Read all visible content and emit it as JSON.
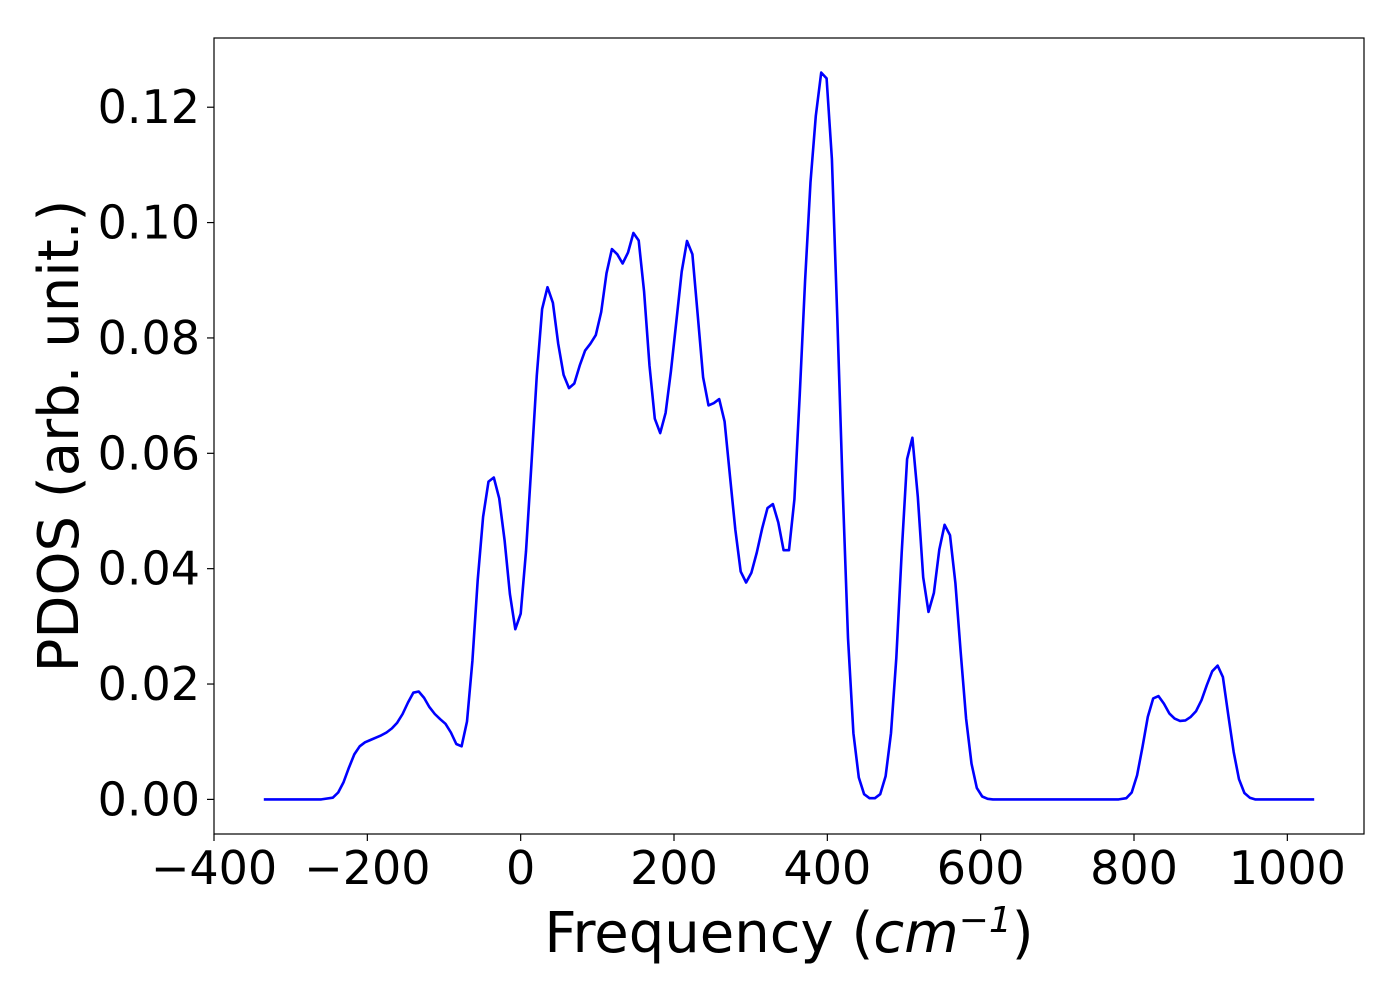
{
  "chart_data": {
    "type": "line",
    "title": "",
    "xlabel_parts": [
      "Frequency (",
      "cm",
      "−1",
      ")"
    ],
    "ylabel": "PDOS (arb. unit.)",
    "xlim": [
      -400,
      1100
    ],
    "ylim": [
      -0.006,
      0.132
    ],
    "xticks": [
      -400,
      -200,
      0,
      200,
      400,
      600,
      800,
      1000
    ],
    "xtick_labels": [
      "−400",
      "−200",
      "0",
      "200",
      "400",
      "600",
      "800",
      "1000"
    ],
    "yticks": [
      0.0,
      0.02,
      0.04,
      0.06,
      0.08,
      0.1,
      0.12
    ],
    "ytick_labels": [
      "0.00",
      "0.02",
      "0.04",
      "0.06",
      "0.08",
      "0.10",
      "0.12"
    ],
    "grid": false,
    "legend": "none",
    "series": [
      {
        "color": "#0000ff",
        "x": [
          -335,
          -300,
          -260,
          -245,
          -238,
          -231,
          -224,
          -217,
          -210,
          -203,
          -196,
          -189,
          -182,
          -175,
          -168,
          -161,
          -154,
          -147,
          -140,
          -133,
          -126,
          -119,
          -112,
          -105,
          -98,
          -91,
          -84,
          -77,
          -70,
          -63,
          -56,
          -49,
          -42,
          -35,
          -28,
          -21,
          -14,
          -7,
          0,
          7,
          14,
          21,
          28,
          35,
          42,
          49,
          56,
          63,
          70,
          77,
          84,
          91,
          98,
          105,
          112,
          119,
          126,
          133,
          140,
          147,
          154,
          161,
          168,
          175,
          182,
          189,
          196,
          203,
          210,
          217,
          224,
          231,
          238,
          245,
          252,
          259,
          266,
          273,
          280,
          287,
          294,
          301,
          308,
          315,
          322,
          329,
          336,
          343,
          350,
          357,
          364,
          371,
          378,
          385,
          392,
          399,
          406,
          413,
          420,
          427,
          434,
          441,
          448,
          455,
          462,
          469,
          476,
          483,
          490,
          497,
          504,
          511,
          518,
          525,
          532,
          539,
          546,
          553,
          560,
          567,
          574,
          581,
          588,
          595,
          602,
          609,
          616,
          630,
          700,
          780,
          790,
          797,
          804,
          811,
          818,
          825,
          832,
          839,
          846,
          853,
          860,
          867,
          874,
          881,
          888,
          895,
          902,
          909,
          916,
          923,
          930,
          937,
          944,
          951,
          958,
          970,
          1000,
          1035
        ],
        "y": [
          0.0,
          0.0,
          0.0,
          0.0003,
          0.0012,
          0.003,
          0.0055,
          0.0078,
          0.0092,
          0.0099,
          0.0103,
          0.0107,
          0.0111,
          0.0116,
          0.0123,
          0.0133,
          0.0148,
          0.0168,
          0.0185,
          0.0187,
          0.0176,
          0.016,
          0.0148,
          0.0139,
          0.0131,
          0.0116,
          0.0096,
          0.0092,
          0.0135,
          0.024,
          0.038,
          0.049,
          0.0551,
          0.0558,
          0.0522,
          0.0449,
          0.0356,
          0.0295,
          0.0322,
          0.043,
          0.058,
          0.0735,
          0.085,
          0.0888,
          0.0861,
          0.079,
          0.0736,
          0.0713,
          0.0721,
          0.0752,
          0.0778,
          0.079,
          0.0805,
          0.0845,
          0.0912,
          0.0954,
          0.0945,
          0.0929,
          0.0948,
          0.0982,
          0.0969,
          0.088,
          0.0752,
          0.066,
          0.0635,
          0.067,
          0.0742,
          0.0828,
          0.0915,
          0.0968,
          0.0945,
          0.0838,
          0.0732,
          0.0683,
          0.0687,
          0.0694,
          0.0655,
          0.056,
          0.0468,
          0.0395,
          0.0376,
          0.0393,
          0.0428,
          0.047,
          0.0505,
          0.0512,
          0.048,
          0.0432,
          0.0432,
          0.052,
          0.07,
          0.09,
          0.107,
          0.1185,
          0.126,
          0.125,
          0.111,
          0.0835,
          0.0538,
          0.028,
          0.0115,
          0.0038,
          0.0009,
          0.0002,
          0.0002,
          0.0009,
          0.004,
          0.0115,
          0.0245,
          0.0428,
          0.059,
          0.0627,
          0.0525,
          0.0385,
          0.0325,
          0.0358,
          0.0433,
          0.0476,
          0.0458,
          0.0375,
          0.0255,
          0.014,
          0.0062,
          0.002,
          0.0005,
          0.0001,
          0.0,
          0.0,
          0.0,
          0.0,
          0.0002,
          0.0012,
          0.0042,
          0.009,
          0.0143,
          0.0175,
          0.0179,
          0.0166,
          0.0149,
          0.014,
          0.0136,
          0.0137,
          0.0143,
          0.0153,
          0.0172,
          0.0198,
          0.0222,
          0.0232,
          0.0212,
          0.0146,
          0.0082,
          0.0035,
          0.0011,
          0.0003,
          0.0,
          0.0,
          0.0,
          0.0
        ]
      }
    ]
  }
}
